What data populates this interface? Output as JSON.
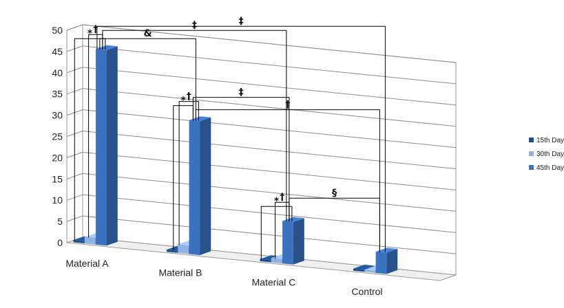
{
  "chart_data": {
    "type": "bar",
    "style": "3d-clustered-column",
    "categories": [
      "Material A",
      "Material B",
      "Material C",
      "Control"
    ],
    "series": [
      {
        "name": "15th Day",
        "values": [
          0.5,
          0.5,
          0.5,
          0.5
        ]
      },
      {
        "name": "30th Day",
        "values": [
          1.5,
          2.0,
          1.0,
          0.5
        ]
      },
      {
        "name": "45th Day",
        "values": [
          46,
          31.5,
          10,
          5
        ]
      }
    ],
    "ylim": [
      0,
      50
    ],
    "yticks": [
      0,
      5,
      10,
      15,
      20,
      25,
      30,
      35,
      40,
      45,
      50
    ],
    "grid": true,
    "legend_position": "right",
    "colors": {
      "15th Day": "#1f4e8c",
      "30th Day": "#8fb3e3",
      "45th Day": "#3a72c0"
    },
    "annotations": [
      {
        "symbol": "*",
        "from": [
          "Material A",
          "15th Day"
        ],
        "to": [
          "Material A",
          "45th Day"
        ]
      },
      {
        "symbol": "†",
        "from": [
          "Material A",
          "30th Day"
        ],
        "to": [
          "Material A",
          "45th Day"
        ]
      },
      {
        "symbol": "‡",
        "from": [
          "Material A",
          "45th Day"
        ],
        "to": [
          "Material C",
          "45th Day"
        ]
      },
      {
        "symbol": "‡",
        "from": [
          "Material A",
          "45th Day"
        ],
        "to": [
          "Control",
          "45th Day"
        ]
      },
      {
        "symbol": "&",
        "from": [
          "Material A",
          "45th Day"
        ],
        "to": [
          "Material B",
          "45th Day"
        ]
      },
      {
        "symbol": "*",
        "from": [
          "Material B",
          "15th Day"
        ],
        "to": [
          "Material B",
          "45th Day"
        ]
      },
      {
        "symbol": "†",
        "from": [
          "Material B",
          "30th Day"
        ],
        "to": [
          "Material B",
          "45th Day"
        ]
      },
      {
        "symbol": "‡",
        "from": [
          "Material B",
          "45th Day"
        ],
        "to": [
          "Material C",
          "45th Day"
        ]
      },
      {
        "symbol": "†",
        "from": [
          "Material B",
          "45th Day"
        ],
        "to": [
          "Control",
          "45th Day"
        ]
      },
      {
        "symbol": "*",
        "from": [
          "Material C",
          "15th Day"
        ],
        "to": [
          "Material C",
          "45th Day"
        ]
      },
      {
        "symbol": "†",
        "from": [
          "Material C",
          "30th Day"
        ],
        "to": [
          "Material C",
          "45th Day"
        ]
      },
      {
        "symbol": "§",
        "from": [
          "Material C",
          "45th Day"
        ],
        "to": [
          "Control",
          "45th Day"
        ]
      }
    ]
  }
}
